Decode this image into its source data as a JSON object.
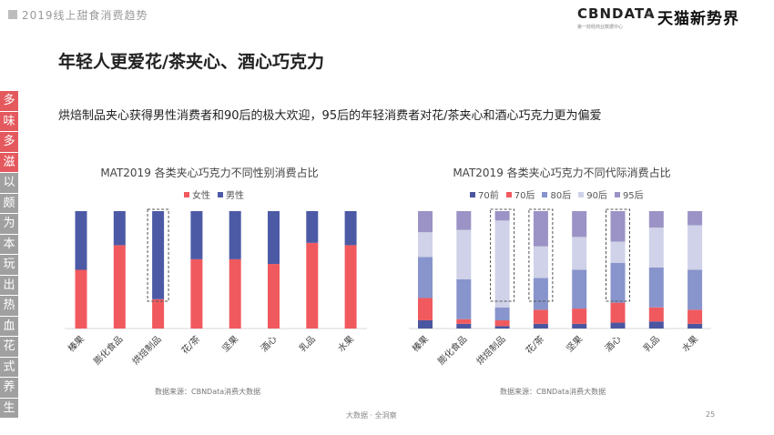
{
  "header": {
    "report_title": "2019线上甜食消费趋势",
    "logo_cbndata": "CBNDATA",
    "logo_cbndata_sub": "第一财经商业数据中心",
    "logo_separator": "×",
    "logo_tmall": "天猫新势界"
  },
  "title": "年轻人更爱花/茶夹心、酒心巧克力",
  "subtitle": "烘焙制品夹心获得男性消费者和90后的极大欢迎，95后的年轻消费者对花/茶夹心和酒心巧克力更为偏爱",
  "side_strip": {
    "chars": [
      "多",
      "味",
      "多",
      "滋",
      "以",
      "颇",
      "为",
      "本",
      "玩",
      "出",
      "热",
      "血",
      "花",
      "式",
      "养",
      "生"
    ],
    "colors": [
      "#e4595e",
      "#e4595e",
      "#e4595e",
      "#e4595e",
      "#a0a0a0",
      "#a0a0a0",
      "#a0a0a0",
      "#a0a0a0",
      "#a0a0a0",
      "#a0a0a0",
      "#a0a0a0",
      "#a0a0a0",
      "#a0a0a0",
      "#a0a0a0",
      "#a0a0a0",
      "#a0a0a0"
    ]
  },
  "chart_data": [
    {
      "type": "bar",
      "stacked": true,
      "normalized": true,
      "title": "MAT2019 各类夹心巧克力不同性别消费占比",
      "categories": [
        "榛果",
        "膨化食品",
        "烘焙制品",
        "花/茶",
        "坚果",
        "酒心",
        "乳品",
        "水果"
      ],
      "series": [
        {
          "name": "女性",
          "color": "#f05a5f",
          "values": [
            0.5,
            0.71,
            0.25,
            0.59,
            0.59,
            0.55,
            0.73,
            0.71
          ]
        },
        {
          "name": "男性",
          "color": "#4c5aa6",
          "values": [
            0.5,
            0.29,
            0.75,
            0.41,
            0.41,
            0.45,
            0.27,
            0.29
          ]
        }
      ],
      "highlight_index": 2,
      "legend": "top-right",
      "source": "数据来源：CBNData消费大数据"
    },
    {
      "type": "bar",
      "stacked": true,
      "normalized": true,
      "title": "MAT2019 各类夹心巧克力不同代际消费占比",
      "categories": [
        "榛果",
        "膨化食品",
        "烘焙制品",
        "花/茶",
        "坚果",
        "酒心",
        "乳品",
        "水果"
      ],
      "series": [
        {
          "name": "70前",
          "color": "#4b56a1",
          "values": [
            0.07,
            0.04,
            0.02,
            0.04,
            0.04,
            0.05,
            0.06,
            0.04
          ]
        },
        {
          "name": "70后",
          "color": "#f05a5f",
          "values": [
            0.19,
            0.04,
            0.05,
            0.12,
            0.13,
            0.17,
            0.12,
            0.12
          ]
        },
        {
          "name": "80后",
          "color": "#8894cc",
          "values": [
            0.35,
            0.34,
            0.11,
            0.27,
            0.33,
            0.34,
            0.34,
            0.34
          ]
        },
        {
          "name": "90后",
          "color": "#cfd2e8",
          "values": [
            0.21,
            0.42,
            0.74,
            0.27,
            0.28,
            0.18,
            0.34,
            0.38
          ]
        },
        {
          "name": "95后",
          "color": "#9b93c5",
          "values": [
            0.18,
            0.16,
            0.08,
            0.3,
            0.22,
            0.26,
            0.14,
            0.12
          ]
        }
      ],
      "highlight_indices": [
        2,
        3,
        5
      ],
      "legend": "top-right",
      "source": "数据来源：CBNData消费大数据"
    }
  ],
  "footer": {
    "text": "大数据 · 全洞察",
    "page_number": "25"
  }
}
